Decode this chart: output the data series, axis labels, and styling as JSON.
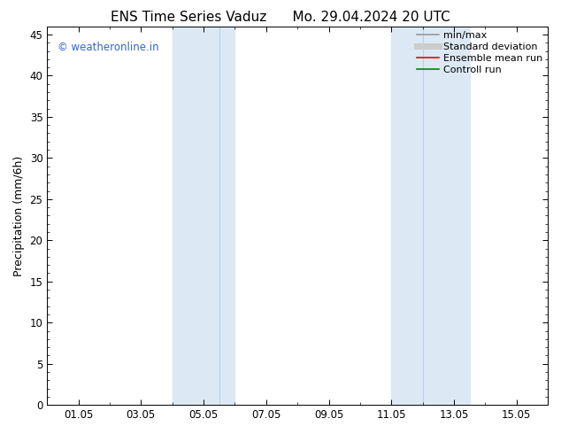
{
  "title": "ENS Time Series Vaduz      Mo. 29.04.2024 20 UTC",
  "ylabel": "Precipitation (mm/6h)",
  "watermark": "© weatheronline.in",
  "watermark_color": "#3366cc",
  "x_tick_labels": [
    "01.05",
    "03.05",
    "05.05",
    "07.05",
    "09.05",
    "11.05",
    "13.05",
    "15.05"
  ],
  "x_tick_positions": [
    1,
    3,
    5,
    7,
    9,
    11,
    13,
    15
  ],
  "xlim": [
    0,
    16
  ],
  "ylim": [
    0,
    46
  ],
  "y_ticks": [
    0,
    5,
    10,
    15,
    20,
    25,
    30,
    35,
    40,
    45
  ],
  "shaded_groups": [
    {
      "x_start": 4.0,
      "x_end": 6.0
    },
    {
      "x_start": 11.0,
      "x_end": 13.5
    }
  ],
  "shaded_dividers": [
    5.5,
    12.0
  ],
  "shaded_color": "#dce9f5",
  "divider_color": "#b8d0e8",
  "legend_entries": [
    {
      "label": "min/max",
      "color": "#999999",
      "lw": 1.2
    },
    {
      "label": "Standard deviation",
      "color": "#cccccc",
      "lw": 5
    },
    {
      "label": "Ensemble mean run",
      "color": "#ff0000",
      "lw": 1.2
    },
    {
      "label": "Controll run",
      "color": "#008800",
      "lw": 1.2
    }
  ],
  "background_color": "#ffffff",
  "plot_bg_color": "#ffffff",
  "title_fontsize": 11,
  "label_fontsize": 9,
  "tick_fontsize": 8.5,
  "watermark_fontsize": 8.5,
  "legend_fontsize": 8
}
